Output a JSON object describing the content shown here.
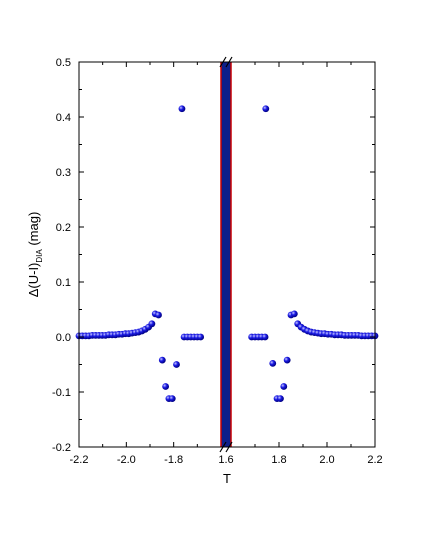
{
  "chart_data": {
    "type": "scatter",
    "title": "",
    "xlabel": "T",
    "ylabel": {
      "main": "Δ(U-I)",
      "sub": "DIA",
      "unit": " (mag)"
    },
    "left_panel": {
      "xlim": [
        -2.2,
        -1.6
      ],
      "xticks": [
        {
          "value": -2.2,
          "label": "-2.2"
        },
        {
          "value": -2.0,
          "label": "-2.0"
        },
        {
          "value": -1.8,
          "label": "-1.8"
        }
      ]
    },
    "break_tick_label": "1.6",
    "right_panel": {
      "xlim": [
        1.6,
        2.2
      ],
      "xticks": [
        {
          "value": 1.8,
          "label": "1.8"
        },
        {
          "value": 2.0,
          "label": "2.0"
        },
        {
          "value": 2.2,
          "label": "2.2"
        }
      ]
    },
    "ylim": [
      -0.2,
      0.5
    ],
    "yticks": [
      {
        "value": -0.2,
        "label": "-0.2"
      },
      {
        "value": -0.1,
        "label": "-0.1"
      },
      {
        "value": 0.0,
        "label": "0.0"
      },
      {
        "value": 0.1,
        "label": "0.1"
      },
      {
        "value": 0.2,
        "label": "0.2"
      },
      {
        "value": 0.3,
        "label": "0.3"
      },
      {
        "value": 0.4,
        "label": "0.4"
      },
      {
        "value": 0.5,
        "label": "0.5"
      }
    ],
    "grid": false,
    "colors": {
      "marker": "#1a1ae6",
      "band_fill": "#0d1f8a",
      "band_edge": "#cc0000"
    },
    "series": [
      {
        "panel": "left",
        "points": [
          [
            -2.2,
            0.002
          ],
          [
            -2.186,
            0.002
          ],
          [
            -2.172,
            0.002
          ],
          [
            -2.158,
            0.002
          ],
          [
            -2.144,
            0.003
          ],
          [
            -2.13,
            0.003
          ],
          [
            -2.116,
            0.003
          ],
          [
            -2.102,
            0.003
          ],
          [
            -2.088,
            0.003
          ],
          [
            -2.074,
            0.004
          ],
          [
            -2.06,
            0.004
          ],
          [
            -2.046,
            0.004
          ],
          [
            -2.032,
            0.005
          ],
          [
            -2.018,
            0.005
          ],
          [
            -2.004,
            0.006
          ],
          [
            -1.99,
            0.006
          ],
          [
            -1.976,
            0.007
          ],
          [
            -1.962,
            0.008
          ],
          [
            -1.948,
            0.009
          ],
          [
            -1.934,
            0.011
          ],
          [
            -1.92,
            0.014
          ],
          [
            -1.906,
            0.018
          ],
          [
            -1.892,
            0.024
          ],
          [
            -1.878,
            0.042
          ],
          [
            -1.864,
            0.04
          ],
          [
            -1.848,
            -0.042
          ],
          [
            -1.834,
            -0.09
          ],
          [
            -1.82,
            -0.112
          ],
          [
            -1.806,
            -0.112
          ],
          [
            -1.788,
            -0.05
          ],
          [
            -1.765,
            0.415
          ],
          [
            -1.756,
            0.0
          ],
          [
            -1.742,
            0.0
          ],
          [
            -1.728,
            0.0
          ],
          [
            -1.714,
            0.0
          ],
          [
            -1.7,
            0.0
          ],
          [
            -1.686,
            0.0
          ]
        ]
      },
      {
        "panel": "right",
        "points": [
          [
            1.686,
            0.0
          ],
          [
            1.7,
            0.0
          ],
          [
            1.714,
            0.0
          ],
          [
            1.728,
            0.0
          ],
          [
            1.742,
            0.0
          ],
          [
            1.745,
            0.415
          ],
          [
            1.774,
            -0.048
          ],
          [
            1.792,
            -0.112
          ],
          [
            1.806,
            -0.112
          ],
          [
            1.82,
            -0.09
          ],
          [
            1.834,
            -0.042
          ],
          [
            1.85,
            0.04
          ],
          [
            1.864,
            0.042
          ],
          [
            1.878,
            0.024
          ],
          [
            1.892,
            0.018
          ],
          [
            1.906,
            0.014
          ],
          [
            1.92,
            0.011
          ],
          [
            1.934,
            0.009
          ],
          [
            1.948,
            0.008
          ],
          [
            1.962,
            0.007
          ],
          [
            1.976,
            0.006
          ],
          [
            1.99,
            0.006
          ],
          [
            2.004,
            0.005
          ],
          [
            2.018,
            0.005
          ],
          [
            2.032,
            0.004
          ],
          [
            2.046,
            0.004
          ],
          [
            2.06,
            0.004
          ],
          [
            2.074,
            0.003
          ],
          [
            2.088,
            0.003
          ],
          [
            2.102,
            0.003
          ],
          [
            2.116,
            0.003
          ],
          [
            2.13,
            0.003
          ],
          [
            2.144,
            0.002
          ],
          [
            2.158,
            0.002
          ],
          [
            2.172,
            0.002
          ],
          [
            2.186,
            0.002
          ],
          [
            2.2,
            0.002
          ]
        ]
      }
    ]
  }
}
